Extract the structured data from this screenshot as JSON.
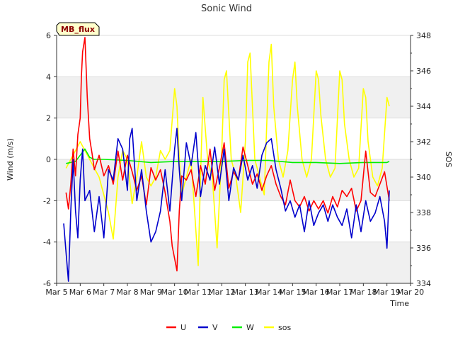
{
  "chart_data": {
    "type": "line",
    "title": "Sonic Wind",
    "xlabel": "Time",
    "ylabel": "Wind (m/s)",
    "y2label": "SOS",
    "badge": "MB_flux",
    "xlim": [
      5,
      20
    ],
    "ylim": [
      -6,
      6
    ],
    "y2lim": [
      334,
      348
    ],
    "categories": [
      "Mar 5",
      "Mar 6",
      "Mar 7",
      "Mar 8",
      "Mar 9",
      "Mar 10",
      "Mar 11",
      "Mar 12",
      "Mar 13",
      "Mar 14",
      "Mar 15",
      "Mar 16",
      "Mar 17",
      "Mar 18",
      "Mar 19",
      "Mar 20"
    ],
    "yticks": [
      "-6",
      "-4",
      "-2",
      "0",
      "2",
      "4",
      "6"
    ],
    "y2ticks": [
      "334",
      "336",
      "338",
      "340",
      "342",
      "344",
      "346",
      "348"
    ],
    "colors": {
      "U": "#ff0000",
      "V": "#0000cc",
      "W": "#00ee00",
      "sos": "#ffff00"
    },
    "series": [
      {
        "name": "U",
        "axis": "left",
        "x": [
          5.4,
          5.5,
          5.6,
          5.7,
          5.8,
          5.9,
          6.0,
          6.05,
          6.1,
          6.2,
          6.3,
          6.4,
          6.5,
          6.6,
          6.8,
          7.0,
          7.2,
          7.4,
          7.6,
          7.8,
          8.0,
          8.2,
          8.4,
          8.6,
          8.8,
          9.0,
          9.2,
          9.4,
          9.6,
          9.8,
          9.9,
          10.0,
          10.1,
          10.2,
          10.3,
          10.5,
          10.7,
          10.9,
          11.1,
          11.3,
          11.5,
          11.7,
          11.9,
          12.1,
          12.3,
          12.5,
          12.7,
          12.9,
          13.1,
          13.3,
          13.5,
          13.7,
          13.9,
          14.1,
          14.3,
          14.5,
          14.7,
          14.9,
          15.1,
          15.3,
          15.5,
          15.7,
          15.9,
          16.1,
          16.3,
          16.5,
          16.7,
          16.9,
          17.1,
          17.3,
          17.5,
          17.7,
          17.9,
          18.1,
          18.3,
          18.5,
          18.7,
          18.9,
          19.1
        ],
        "values": [
          -1.6,
          -2.4,
          -1.2,
          0.5,
          -0.8,
          1.2,
          2.0,
          4.0,
          5.2,
          5.9,
          3.0,
          1.0,
          0.3,
          -0.5,
          0.2,
          -0.8,
          -0.3,
          -1.2,
          0.4,
          -1.0,
          0.2,
          -0.6,
          -1.5,
          -0.8,
          -2.2,
          -0.4,
          -1.0,
          -0.5,
          -1.6,
          -3.0,
          -4.2,
          -4.8,
          -5.4,
          -2.5,
          -0.8,
          -1.0,
          -0.5,
          -1.8,
          -0.3,
          -1.2,
          0.5,
          -1.5,
          -0.4,
          0.8,
          -1.4,
          -0.6,
          -1.0,
          0.6,
          -0.3,
          -1.2,
          -0.7,
          -1.5,
          -0.8,
          -0.3,
          -1.2,
          -1.8,
          -2.2,
          -1.0,
          -2.0,
          -2.3,
          -1.8,
          -2.5,
          -2.0,
          -2.4,
          -2.0,
          -2.6,
          -1.8,
          -2.3,
          -1.5,
          -1.8,
          -1.4,
          -2.5,
          -2.0,
          0.4,
          -1.6,
          -1.8,
          -1.2,
          -0.6,
          -2.0
        ]
      },
      {
        "name": "V",
        "axis": "left",
        "x": [
          5.3,
          5.4,
          5.5,
          5.6,
          5.7,
          5.8,
          5.9,
          6.0,
          6.1,
          6.2,
          6.4,
          6.6,
          6.8,
          7.0,
          7.2,
          7.4,
          7.6,
          7.8,
          8.0,
          8.1,
          8.2,
          8.4,
          8.6,
          8.8,
          9.0,
          9.2,
          9.4,
          9.6,
          9.8,
          10.0,
          10.1,
          10.2,
          10.3,
          10.5,
          10.7,
          10.9,
          11.1,
          11.3,
          11.5,
          11.7,
          11.9,
          12.1,
          12.3,
          12.5,
          12.7,
          12.9,
          13.1,
          13.3,
          13.5,
          13.7,
          13.9,
          14.1,
          14.3,
          14.5,
          14.7,
          14.9,
          15.1,
          15.3,
          15.5,
          15.7,
          15.9,
          16.1,
          16.3,
          16.5,
          16.7,
          16.9,
          17.1,
          17.3,
          17.5,
          17.7,
          17.9,
          18.1,
          18.3,
          18.5,
          18.7,
          18.9,
          19.0,
          19.1
        ],
        "values": [
          -3.1,
          -4.5,
          -5.9,
          -2.5,
          0.0,
          -2.5,
          -3.8,
          -1.0,
          0.5,
          -2.0,
          -1.5,
          -3.5,
          -1.8,
          -3.8,
          -0.5,
          -1.0,
          1.0,
          0.5,
          -1.5,
          1.0,
          1.5,
          -2.0,
          -0.5,
          -2.5,
          -4.0,
          -3.5,
          -2.5,
          -0.5,
          -2.5,
          0.5,
          1.5,
          -0.5,
          -2.0,
          0.8,
          -0.3,
          1.3,
          -1.8,
          -0.3,
          -1.0,
          0.6,
          -1.2,
          0.5,
          -2.0,
          -0.4,
          -1.0,
          0.2,
          -1.0,
          -0.3,
          -1.4,
          0.2,
          0.8,
          1.0,
          -0.5,
          -1.4,
          -2.5,
          -2.0,
          -2.8,
          -2.2,
          -3.5,
          -2.0,
          -3.2,
          -2.6,
          -2.2,
          -3.0,
          -2.2,
          -2.8,
          -3.2,
          -2.4,
          -3.8,
          -2.2,
          -3.5,
          -2.0,
          -3.0,
          -2.6,
          -1.8,
          -3.0,
          -4.3,
          -1.5
        ]
      },
      {
        "name": "W",
        "axis": "left",
        "x": [
          5.4,
          5.8,
          6.0,
          6.2,
          6.4,
          6.6,
          7.0,
          8.0,
          9.0,
          10.0,
          11.0,
          12.0,
          13.0,
          14.0,
          15.0,
          16.0,
          17.0,
          18.0,
          19.0,
          19.1
        ],
        "values": [
          -0.2,
          -0.1,
          0.2,
          0.5,
          0.1,
          0.0,
          0.0,
          -0.05,
          -0.15,
          -0.1,
          -0.1,
          -0.1,
          -0.05,
          -0.05,
          -0.15,
          -0.15,
          -0.2,
          -0.15,
          -0.15,
          -0.1
        ]
      },
      {
        "name": "sos",
        "axis": "right",
        "x": [
          5.4,
          5.6,
          5.8,
          6.0,
          6.2,
          6.4,
          6.6,
          6.8,
          7.0,
          7.2,
          7.4,
          7.6,
          7.8,
          8.0,
          8.2,
          8.4,
          8.6,
          8.8,
          9.0,
          9.2,
          9.4,
          9.6,
          9.8,
          10.0,
          10.1,
          10.2,
          10.3,
          10.5,
          10.7,
          10.9,
          11.0,
          11.1,
          11.2,
          11.4,
          11.6,
          11.8,
          12.0,
          12.1,
          12.2,
          12.4,
          12.6,
          12.8,
          13.0,
          13.1,
          13.2,
          13.4,
          13.6,
          13.8,
          14.0,
          14.1,
          14.2,
          14.4,
          14.6,
          14.8,
          15.0,
          15.1,
          15.2,
          15.4,
          15.6,
          15.8,
          16.0,
          16.1,
          16.2,
          16.4,
          16.6,
          16.8,
          17.0,
          17.1,
          17.2,
          17.4,
          17.6,
          17.8,
          18.0,
          18.1,
          18.2,
          18.4,
          18.6,
          18.8,
          19.0,
          19.1
        ],
        "values": [
          340.5,
          341.0,
          341.5,
          342.0,
          341.5,
          341.0,
          340.5,
          340.0,
          339.0,
          338.0,
          336.5,
          340.0,
          341.5,
          341.0,
          338.5,
          340.0,
          342.0,
          340.0,
          339.5,
          340.0,
          341.5,
          341.0,
          341.5,
          345.0,
          344.0,
          341.0,
          339.0,
          340.0,
          341.0,
          337.0,
          335.0,
          340.0,
          344.5,
          341.0,
          340.0,
          336.0,
          341.5,
          345.5,
          346.0,
          341.0,
          340.0,
          338.0,
          342.0,
          346.5,
          347.0,
          341.0,
          340.0,
          339.0,
          346.5,
          347.5,
          344.0,
          341.0,
          340.0,
          341.5,
          345.5,
          346.5,
          344.0,
          341.0,
          340.0,
          341.0,
          346.0,
          345.5,
          343.5,
          341.0,
          340.0,
          340.5,
          346.0,
          345.5,
          343.0,
          341.0,
          340.0,
          340.5,
          345.0,
          344.5,
          342.0,
          340.0,
          339.5,
          340.5,
          344.5,
          344.0
        ]
      }
    ]
  }
}
